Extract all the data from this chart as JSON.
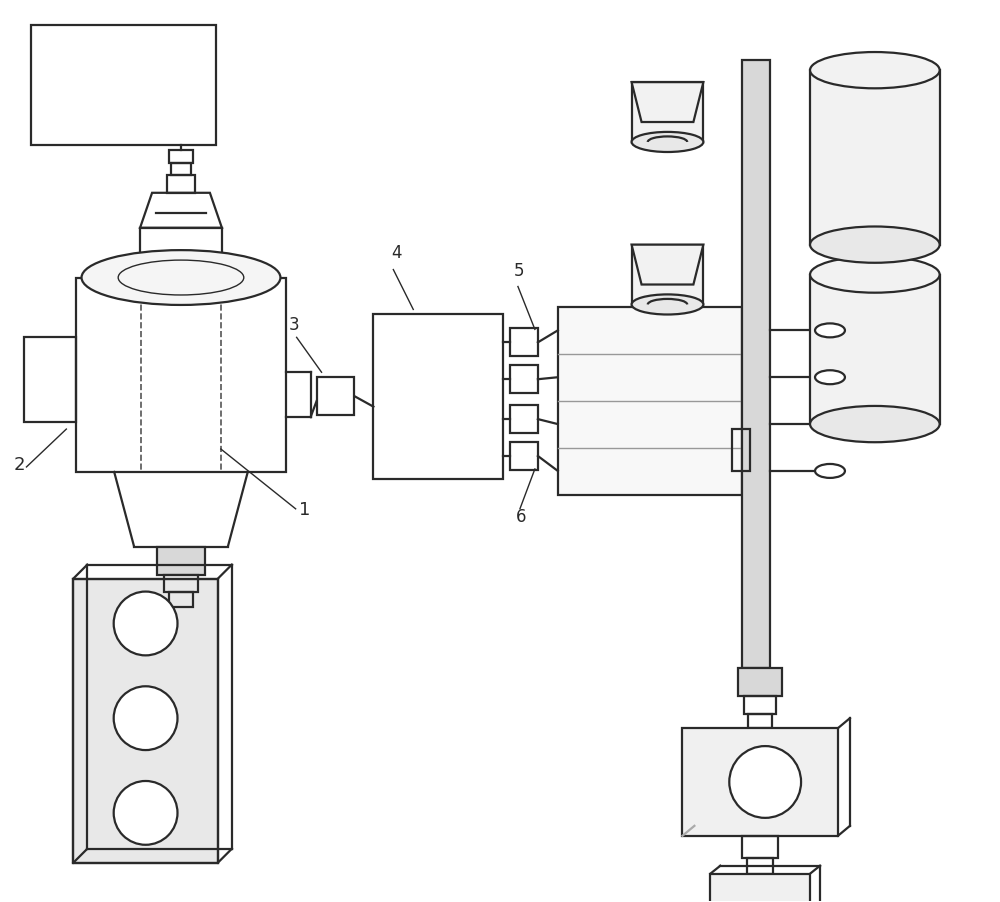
{
  "bg": "#ffffff",
  "lc": "#2a2a2a",
  "gc": "#aaaaaa",
  "lgc": "#d8d8d8",
  "figsize": [
    10.0,
    9.03
  ],
  "dpi": 100
}
